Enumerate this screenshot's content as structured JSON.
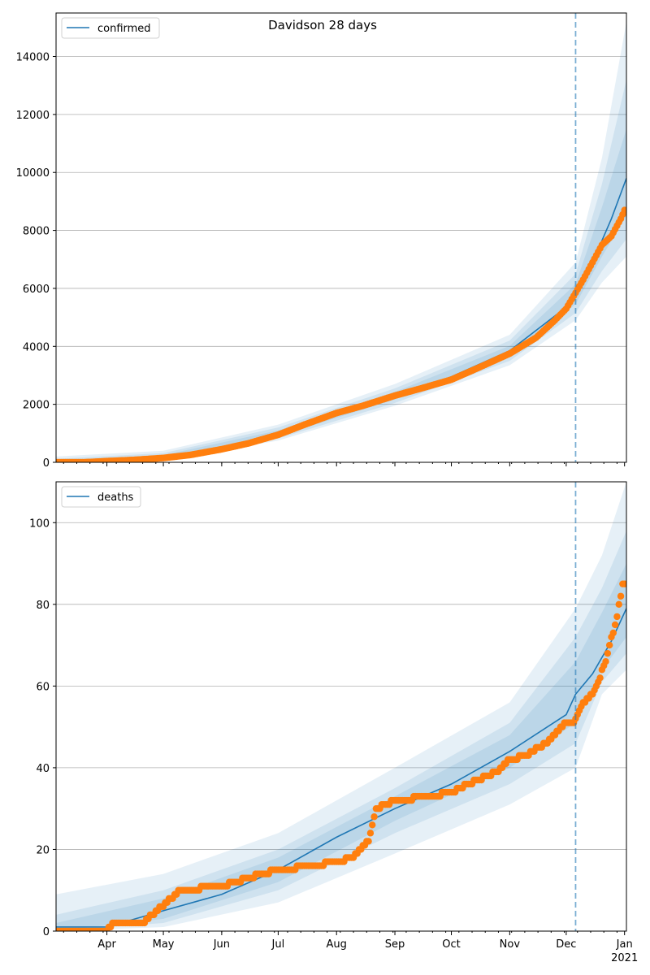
{
  "figure_title": "Davidson 28 days",
  "colors": {
    "model_line": "#1f77b4",
    "band": "#1f77b4",
    "observed": "#ff7f0e",
    "grid": "#b0b0b0",
    "cutoff_line": "#1f77b4"
  },
  "x_axis": {
    "month_labels": [
      "Apr",
      "May",
      "Jun",
      "Jul",
      "Aug",
      "Sep",
      "Oct",
      "Nov",
      "Dec",
      "Jan"
    ],
    "month_dates": [
      "2020-04-01",
      "2020-05-01",
      "2020-06-01",
      "2020-07-01",
      "2020-08-01",
      "2020-09-01",
      "2020-10-01",
      "2020-11-01",
      "2020-12-01",
      "2021-01-01"
    ],
    "year_label": "2021",
    "range": [
      "2020-03-05",
      "2021-01-02"
    ]
  },
  "chart_data": [
    {
      "type": "line",
      "legend": [
        "confirmed"
      ],
      "legend_position": "upper-left",
      "grid": "horizontal",
      "ylim": [
        0,
        15500
      ],
      "yticks": [
        0,
        2000,
        4000,
        6000,
        8000,
        10000,
        12000,
        14000
      ],
      "cutoff_date": "2020-12-06",
      "series": [
        {
          "name": "confirmed",
          "kind": "model",
          "x": [
            "2020-03-05",
            "2020-04-01",
            "2020-05-01",
            "2020-06-01",
            "2020-07-01",
            "2020-08-01",
            "2020-09-01",
            "2020-10-01",
            "2020-11-01",
            "2020-12-01",
            "2020-12-06",
            "2020-12-15",
            "2020-12-25",
            "2021-01-02"
          ],
          "y": [
            0,
            60,
            180,
            500,
            1000,
            1750,
            2300,
            2950,
            3850,
            5350,
            5800,
            6900,
            8400,
            9800
          ]
        },
        {
          "kind": "observed",
          "x": [
            "2020-03-05",
            "2020-03-20",
            "2020-04-01",
            "2020-04-15",
            "2020-05-01",
            "2020-05-15",
            "2020-06-01",
            "2020-06-15",
            "2020-07-01",
            "2020-07-15",
            "2020-08-01",
            "2020-08-15",
            "2020-09-01",
            "2020-09-15",
            "2020-10-01",
            "2020-10-15",
            "2020-11-01",
            "2020-11-15",
            "2020-11-25",
            "2020-12-01",
            "2020-12-06",
            "2020-12-10",
            "2020-12-15",
            "2020-12-20",
            "2020-12-25",
            "2020-12-30",
            "2021-01-01"
          ],
          "y": [
            0,
            0,
            40,
            80,
            150,
            250,
            450,
            650,
            950,
            1300,
            1700,
            1950,
            2300,
            2550,
            2850,
            3250,
            3750,
            4300,
            4900,
            5300,
            5850,
            6300,
            6900,
            7500,
            7800,
            8400,
            8700
          ]
        }
      ],
      "bands": [
        {
          "x": [
            "2020-03-05",
            "2020-05-01",
            "2020-07-01",
            "2020-09-01",
            "2020-11-01",
            "2020-12-06",
            "2020-12-20",
            "2021-01-02"
          ],
          "upper": [
            200,
            400,
            1300,
            2700,
            4400,
            6900,
            10500,
            15200
          ],
          "lower": [
            0,
            60,
            750,
            1950,
            3350,
            4900,
            6200,
            7100
          ]
        },
        {
          "x": [
            "2020-03-05",
            "2020-05-01",
            "2020-07-01",
            "2020-09-01",
            "2020-11-01",
            "2020-12-06",
            "2020-12-20",
            "2021-01-02"
          ],
          "upper": [
            120,
            320,
            1200,
            2550,
            4200,
            6500,
            9600,
            13200
          ],
          "lower": [
            0,
            100,
            820,
            2050,
            3500,
            5150,
            6600,
            7700
          ]
        },
        {
          "x": [
            "2020-03-05",
            "2020-05-01",
            "2020-07-01",
            "2020-09-01",
            "2020-11-01",
            "2020-12-06",
            "2020-12-20",
            "2021-01-02"
          ],
          "upper": [
            60,
            250,
            1100,
            2430,
            4020,
            6150,
            8800,
            11500
          ],
          "lower": [
            0,
            130,
            900,
            2170,
            3680,
            5450,
            7100,
            8500
          ]
        }
      ]
    },
    {
      "type": "line",
      "legend": [
        "deaths"
      ],
      "legend_position": "upper-left",
      "grid": "horizontal",
      "ylim": [
        0,
        110
      ],
      "yticks": [
        0,
        20,
        40,
        60,
        80,
        100
      ],
      "cutoff_date": "2020-12-06",
      "series": [
        {
          "name": "deaths",
          "kind": "model",
          "x": [
            "2020-03-05",
            "2020-04-01",
            "2020-05-01",
            "2020-06-01",
            "2020-07-01",
            "2020-08-01",
            "2020-09-01",
            "2020-10-01",
            "2020-11-01",
            "2020-12-01",
            "2020-12-06",
            "2020-12-15",
            "2020-12-25",
            "2021-01-02"
          ],
          "y": [
            1,
            1,
            5,
            9,
            15,
            23,
            30,
            36,
            44,
            53,
            58,
            63,
            71,
            79
          ]
        },
        {
          "kind": "observed",
          "x": [
            "2020-03-05",
            "2020-04-01",
            "2020-04-05",
            "2020-04-20",
            "2020-04-25",
            "2020-05-05",
            "2020-05-10",
            "2020-06-01",
            "2020-06-15",
            "2020-07-01",
            "2020-07-20",
            "2020-08-01",
            "2020-08-10",
            "2020-08-18",
            "2020-08-22",
            "2020-09-01",
            "2020-09-20",
            "2020-10-01",
            "2020-10-15",
            "2020-10-25",
            "2020-11-01",
            "2020-11-10",
            "2020-11-20",
            "2020-11-25",
            "2020-12-01",
            "2020-12-05",
            "2020-12-10",
            "2020-12-15",
            "2020-12-18",
            "2020-12-22",
            "2020-12-28",
            "2020-12-31",
            "2021-01-01"
          ],
          "y": [
            0,
            0,
            2,
            2,
            4,
            8,
            10,
            11,
            13,
            15,
            16,
            17,
            18,
            22,
            30,
            32,
            33,
            34,
            37,
            39,
            42,
            43,
            46,
            48,
            51,
            51,
            56,
            58,
            61,
            66,
            77,
            85,
            85
          ]
        }
      ],
      "bands": [
        {
          "x": [
            "2020-03-05",
            "2020-05-01",
            "2020-07-01",
            "2020-09-01",
            "2020-11-01",
            "2020-12-06",
            "2020-12-20",
            "2021-01-02"
          ],
          "upper": [
            9,
            14,
            24,
            40,
            56,
            79,
            92,
            110
          ],
          "lower": [
            0,
            1,
            7,
            19,
            31,
            40,
            58,
            64
          ]
        },
        {
          "x": [
            "2020-03-05",
            "2020-05-01",
            "2020-07-01",
            "2020-09-01",
            "2020-11-01",
            "2020-12-06",
            "2020-12-20",
            "2021-01-02"
          ],
          "upper": [
            4,
            10,
            20,
            35,
            51,
            72,
            84,
            98
          ],
          "lower": [
            0,
            2,
            10,
            24,
            36,
            46,
            61,
            68
          ]
        },
        {
          "x": [
            "2020-03-05",
            "2020-05-01",
            "2020-07-01",
            "2020-09-01",
            "2020-11-01",
            "2020-12-06",
            "2020-12-20",
            "2021-01-02"
          ],
          "upper": [
            2,
            8,
            18,
            33,
            48,
            66,
            78,
            90
          ],
          "lower": [
            0,
            3,
            12,
            27,
            40,
            51,
            64,
            72
          ]
        }
      ]
    }
  ]
}
